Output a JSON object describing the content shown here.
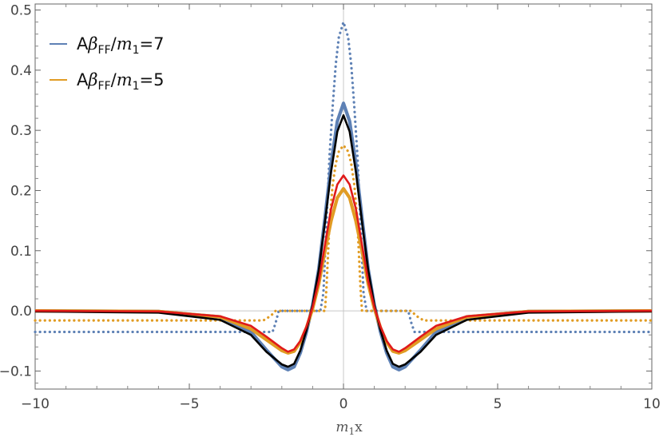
{
  "chart_data": {
    "type": "line",
    "xlabel": "m1x",
    "xlabel_parts": {
      "m": "m",
      "sub": "1",
      "rest": "x"
    },
    "xlim": [
      -10,
      10
    ],
    "ylim": [
      -0.13,
      0.51
    ],
    "x_ticks": [
      -10,
      -5,
      0,
      5,
      10
    ],
    "x_tick_labels": [
      "−10",
      "−5",
      "0",
      "5",
      "10"
    ],
    "y_ticks": [
      -0.1,
      0.0,
      0.1,
      0.2,
      0.3,
      0.4,
      0.5
    ],
    "y_tick_labels": [
      "−0.1",
      "0.0",
      "0.1",
      "0.2",
      "0.3",
      "0.4",
      "0.5"
    ],
    "grid": "zero lines only",
    "legend_position": "top-left",
    "legend": [
      {
        "label_parts": {
          "pre": "A",
          "beta": "β",
          "sub": "FF",
          "mid": "/",
          "m": "m",
          "msub": "1",
          "post": "=7"
        },
        "color": "#5E81B5"
      },
      {
        "label_parts": {
          "pre": "A",
          "beta": "β",
          "sub": "FF",
          "mid": "/",
          "m": "m",
          "msub": "1",
          "post": "=5"
        },
        "color": "#E19C24"
      }
    ],
    "series": [
      {
        "color": "#5E81B5",
        "style": "dotted",
        "x": [
          -10,
          -2.3,
          -2.2,
          -2.1,
          -0.75,
          -0.65,
          -0.55,
          -0.45,
          -0.35,
          -0.25,
          -0.15,
          0,
          0.15,
          0.25,
          0.35,
          0.45,
          0.55,
          0.65,
          0.75,
          2.1,
          2.2,
          2.3,
          10
        ],
        "y": [
          -0.035,
          -0.035,
          -0.02,
          0.0,
          0.0,
          0.03,
          0.15,
          0.26,
          0.34,
          0.41,
          0.455,
          0.48,
          0.455,
          0.41,
          0.34,
          0.26,
          0.15,
          0.03,
          0.0,
          0.0,
          -0.02,
          -0.035,
          -0.035
        ]
      },
      {
        "color": "#E19C24",
        "style": "dotted",
        "x": [
          -10,
          -2.6,
          -2.35,
          -2.2,
          -0.6,
          -0.55,
          -0.45,
          -0.35,
          -0.25,
          -0.15,
          0,
          0.15,
          0.25,
          0.35,
          0.45,
          0.55,
          0.6,
          2.2,
          2.35,
          2.6,
          10
        ],
        "y": [
          -0.016,
          -0.016,
          -0.008,
          0.0,
          0.0,
          0.04,
          0.15,
          0.21,
          0.245,
          0.265,
          0.275,
          0.265,
          0.245,
          0.21,
          0.15,
          0.04,
          0.0,
          0.0,
          -0.008,
          -0.016,
          -0.016
        ]
      },
      {
        "color": "#5E81B5",
        "style": "thick",
        "x": [
          -10,
          -6,
          -4,
          -3,
          -2.5,
          -2,
          -1.8,
          -1.6,
          -1.4,
          -1.2,
          -1,
          -0.8,
          -0.6,
          -0.4,
          -0.2,
          0,
          0.2,
          0.4,
          0.6,
          0.8,
          1,
          1.2,
          1.4,
          1.6,
          1.8,
          2,
          2.5,
          3,
          4,
          6,
          10
        ],
        "y": [
          0,
          -0.001,
          -0.01,
          -0.035,
          -0.065,
          -0.093,
          -0.098,
          -0.093,
          -0.07,
          -0.035,
          0.01,
          0.07,
          0.155,
          0.245,
          0.315,
          0.345,
          0.315,
          0.245,
          0.155,
          0.07,
          0.01,
          -0.035,
          -0.07,
          -0.093,
          -0.098,
          -0.093,
          -0.065,
          -0.035,
          -0.01,
          -0.001,
          0
        ]
      },
      {
        "color": "#E19C24",
        "style": "thick",
        "x": [
          -10,
          -6,
          -4,
          -3,
          -2.5,
          -2,
          -1.8,
          -1.6,
          -1.4,
          -1.2,
          -1,
          -0.8,
          -0.6,
          -0.4,
          -0.2,
          0,
          0.2,
          0.4,
          0.6,
          0.8,
          1,
          1.2,
          1.4,
          1.6,
          1.8,
          2,
          2.5,
          3,
          4,
          6,
          10
        ],
        "y": [
          0,
          -0.001,
          -0.01,
          -0.03,
          -0.048,
          -0.066,
          -0.07,
          -0.067,
          -0.052,
          -0.028,
          0.004,
          0.045,
          0.1,
          0.15,
          0.188,
          0.203,
          0.188,
          0.15,
          0.1,
          0.045,
          0.004,
          -0.028,
          -0.052,
          -0.067,
          -0.07,
          -0.066,
          -0.048,
          -0.03,
          -0.01,
          -0.001,
          0
        ]
      },
      {
        "color": "#000000",
        "style": "solid",
        "x": [
          -10,
          -6,
          -4,
          -3,
          -2.5,
          -2,
          -1.8,
          -1.6,
          -1.4,
          -1.2,
          -1,
          -0.8,
          -0.6,
          -0.4,
          -0.2,
          0,
          0.2,
          0.4,
          0.6,
          0.8,
          1,
          1.2,
          1.4,
          1.6,
          1.8,
          2,
          2.5,
          3,
          4,
          6,
          10
        ],
        "y": [
          -0.001,
          -0.003,
          -0.015,
          -0.04,
          -0.068,
          -0.089,
          -0.093,
          -0.088,
          -0.066,
          -0.032,
          0.01,
          0.068,
          0.148,
          0.232,
          0.298,
          0.325,
          0.298,
          0.232,
          0.148,
          0.068,
          0.01,
          -0.032,
          -0.066,
          -0.088,
          -0.093,
          -0.089,
          -0.068,
          -0.04,
          -0.015,
          -0.003,
          -0.001
        ]
      },
      {
        "color": "#E01A1A",
        "style": "solid",
        "x": [
          -10,
          -6,
          -4,
          -3,
          -2.5,
          -2,
          -1.8,
          -1.6,
          -1.4,
          -1.2,
          -1,
          -0.8,
          -0.6,
          -0.4,
          -0.2,
          0,
          0.2,
          0.4,
          0.6,
          0.8,
          1,
          1.2,
          1.4,
          1.6,
          1.8,
          2,
          2.5,
          3,
          4,
          6,
          10
        ],
        "y": [
          0,
          -0.001,
          -0.009,
          -0.025,
          -0.043,
          -0.062,
          -0.068,
          -0.064,
          -0.05,
          -0.026,
          0.006,
          0.05,
          0.11,
          0.17,
          0.21,
          0.225,
          0.21,
          0.17,
          0.11,
          0.05,
          0.006,
          -0.026,
          -0.05,
          -0.064,
          -0.068,
          -0.062,
          -0.043,
          -0.025,
          -0.009,
          -0.001,
          0
        ]
      }
    ]
  }
}
